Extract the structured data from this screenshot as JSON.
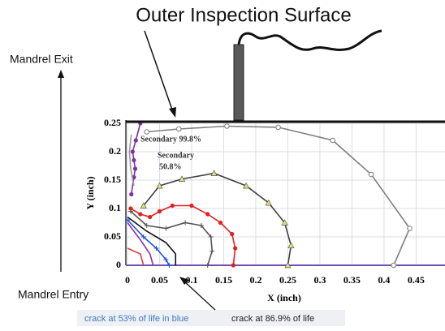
{
  "chart_data": {
    "type": "line",
    "title": "Outer Inspection Surface",
    "x_label": "X (inch)",
    "y_label": "Y (inch)",
    "xlim": [
      0,
      0.49
    ],
    "ylim": [
      0,
      0.25
    ],
    "xticks": [
      0,
      0.05,
      0.1,
      0.15,
      0.2,
      0.25,
      0.3,
      0.35,
      0.4,
      0.45
    ],
    "yticks": [
      0,
      0.05,
      0.1,
      0.15,
      0.2,
      0.25
    ],
    "grid": true,
    "series": [
      {
        "color": "#7f7f7f",
        "marker": "circle-open",
        "x": [
          0.03,
          0.08,
          0.155,
          0.235,
          0.32,
          0.38,
          0.44,
          0.415
        ],
        "values": [
          0.235,
          0.24,
          0.245,
          0.243,
          0.22,
          0.16,
          0.065,
          0
        ]
      },
      {
        "color": "#404040",
        "marker": "triangle",
        "x": [
          0.025,
          0.05,
          0.085,
          0.135,
          0.185,
          0.22,
          0.245,
          0.255,
          0.25
        ],
        "values": [
          0.105,
          0.14,
          0.152,
          0.162,
          0.14,
          0.11,
          0.075,
          0.035,
          0
        ]
      },
      {
        "color": "#e02020",
        "marker": "dot",
        "x": [
          0.005,
          0.02,
          0.035,
          0.05,
          0.07,
          0.1,
          0.125,
          0.145,
          0.163,
          0.168,
          0.165
        ],
        "values": [
          0.1,
          0.09,
          0.085,
          0.095,
          0.105,
          0.105,
          0.09,
          0.075,
          0.055,
          0.03,
          0
        ]
      },
      {
        "color": "#555555",
        "marker": "plus",
        "x": [
          0.005,
          0.03,
          0.06,
          0.09,
          0.115,
          0.13,
          0.132,
          0.125
        ],
        "values": [
          0.095,
          0.07,
          0.065,
          0.075,
          0.07,
          0.05,
          0.025,
          0
        ]
      },
      {
        "color": "#111111",
        "marker": "none",
        "x": [
          0,
          0.03,
          0.06,
          0.075,
          0.075
        ],
        "values": [
          0.085,
          0.06,
          0.04,
          0.02,
          0
        ]
      },
      {
        "color": "#2050e0",
        "marker": "plus",
        "x": [
          0,
          0.025,
          0.045,
          0.06,
          0.065
        ],
        "values": [
          0.08,
          0.05,
          0.03,
          0.01,
          0
        ]
      },
      {
        "color": "#9030b0",
        "marker": "none",
        "x": [
          0,
          0.02,
          0.035,
          0.04
        ],
        "values": [
          0.075,
          0.045,
          0.02,
          0
        ]
      },
      {
        "color": "#e04040",
        "marker": "none",
        "x": [
          0,
          0.02,
          0.025
        ],
        "values": [
          0.03,
          0.02,
          0
        ]
      },
      {
        "color": "#8030a0",
        "marker": "dot",
        "x": [
          0.02,
          0.013,
          0.008,
          0.01,
          0.012,
          0.01,
          0.006
        ],
        "values": [
          0.25,
          0.22,
          0.2,
          0.185,
          0.17,
          0.155,
          0.125
        ]
      },
      {
        "color": "#999999",
        "marker": "none",
        "x": [
          0.006,
          0.003,
          0.005,
          0.01
        ],
        "values": [
          0.23,
          0.2,
          0.17,
          0.14
        ]
      }
    ],
    "annotations": [
      "Mandrel Exit",
      "Mandrel Entry",
      "Secondary 99.8%",
      "Secondary",
      "50.8%",
      "crack at 53% of life in blue",
      "crack at 86.9% of life"
    ]
  }
}
